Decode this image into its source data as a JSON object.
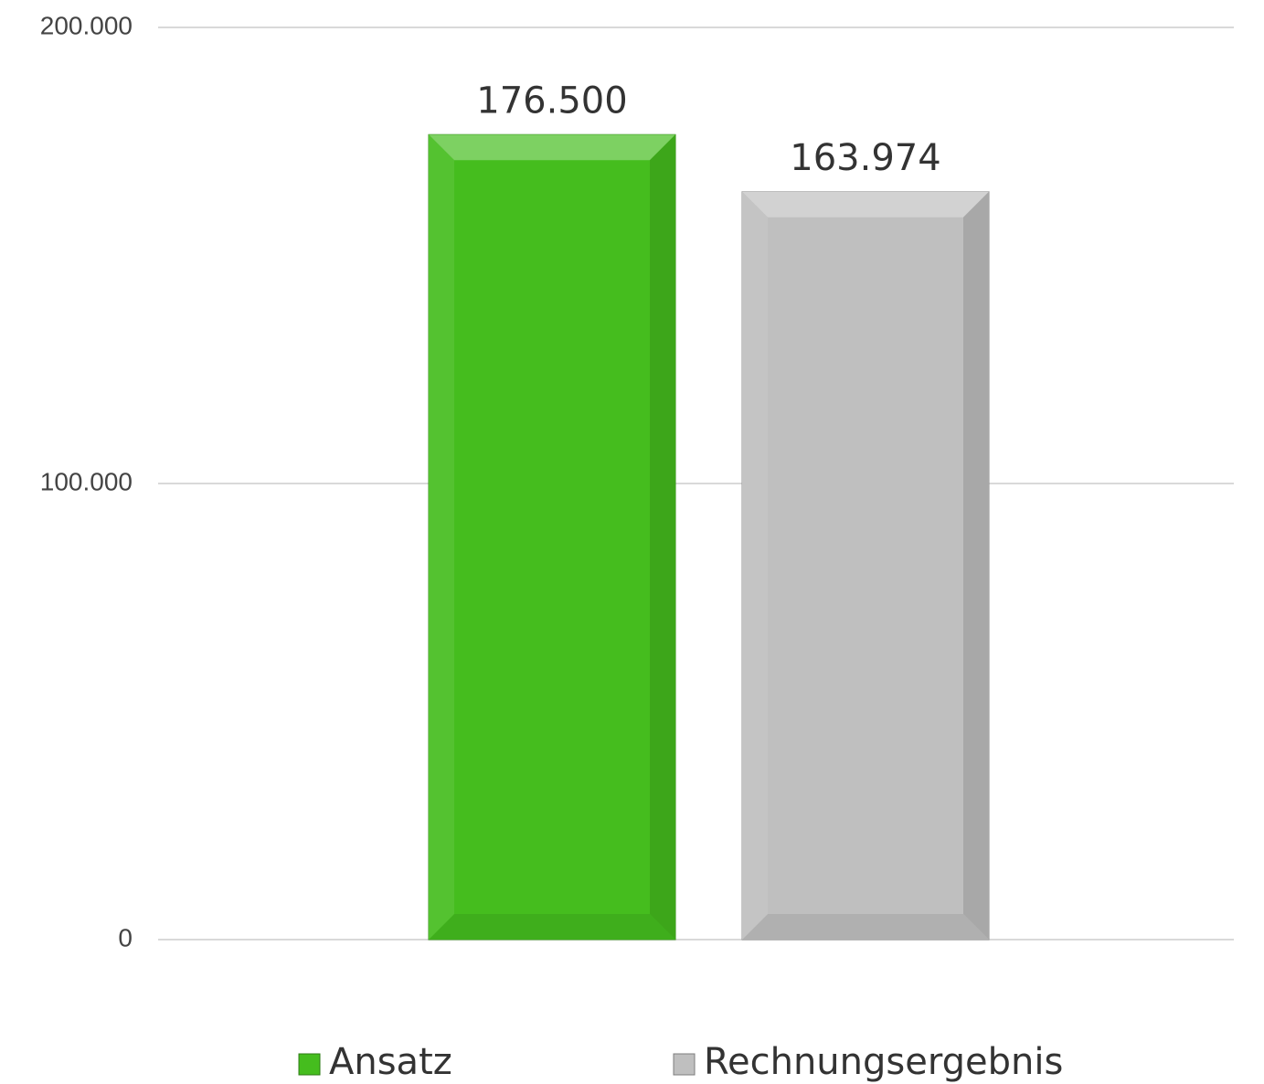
{
  "chart_data": {
    "type": "bar",
    "categories": [
      null
    ],
    "series": [
      {
        "name": "Ansatz",
        "color": "#45bd1e",
        "values": [
          176500
        ],
        "value_labels": [
          "176.500"
        ]
      },
      {
        "name": "Rechnungsergebnis",
        "color": "#bfbfbf",
        "values": [
          163974
        ],
        "value_labels": [
          "163.974"
        ]
      }
    ],
    "ylim": [
      0,
      200000
    ],
    "yticks": [
      0,
      {
        "value": 100000,
        "label": "100.000"
      },
      {
        "value": 200000,
        "label": "200.000"
      }
    ],
    "grid": true,
    "legend": "bottom"
  }
}
